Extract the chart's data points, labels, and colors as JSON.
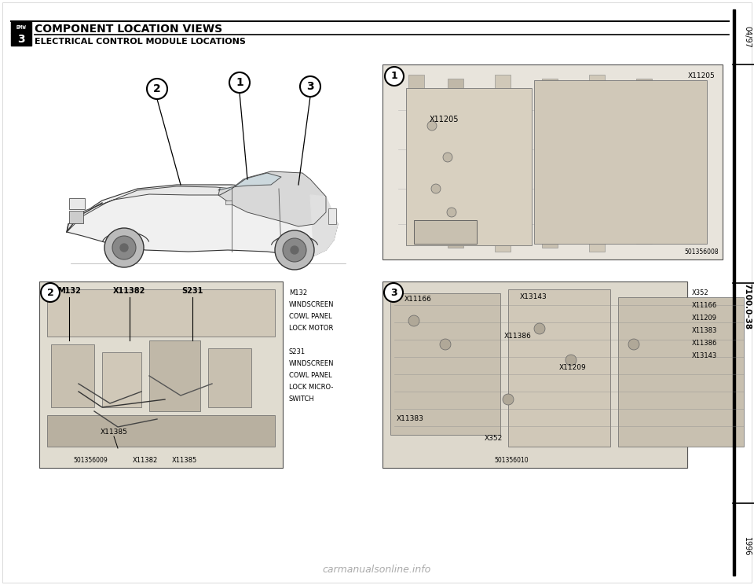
{
  "title_line1": "COMPONENT LOCATION VIEWS",
  "title_line2": "ELECTRICAL CONTROL MODULE LOCATIONS",
  "bg_color": "#ffffff",
  "right_bar_texts": [
    "04/97",
    "7100.0-38",
    "1996"
  ],
  "diagram3_legend": [
    "M132",
    "WINDSCREEN",
    "COWL PANEL",
    "LOCK MOTOR",
    "",
    "S231",
    "WINDSCREEN",
    "COWL PANEL",
    "LOCK MICRO-",
    "SWITCH"
  ],
  "diagram4_legend": [
    "X352",
    "X11166",
    "X11209",
    "X11383",
    "X11386",
    "X13143"
  ],
  "watermark": "carmanualsonline.info",
  "img_code_1": "501356008",
  "img_code_2": "501356009",
  "img_code_3": "501356010"
}
